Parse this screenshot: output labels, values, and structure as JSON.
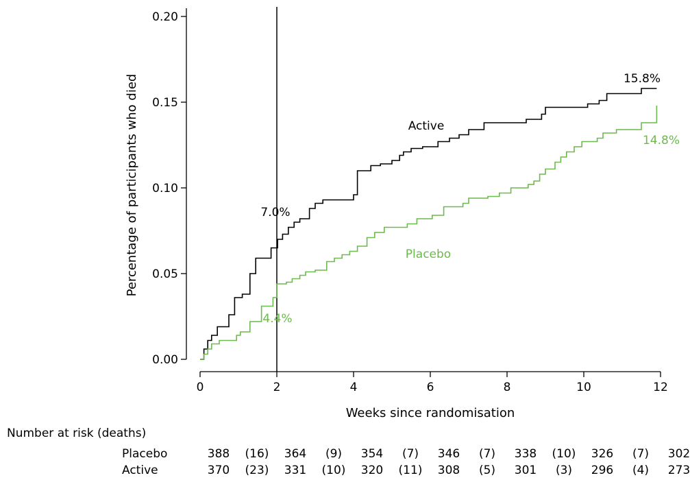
{
  "chart_data": {
    "type": "line",
    "subtype": "step",
    "xlabel": "Weeks since randomisation",
    "ylabel": "Percentage of participants who died",
    "xlim": [
      0,
      12
    ],
    "ylim": [
      0,
      0.2
    ],
    "xticks": [
      "0",
      "2",
      "4",
      "6",
      "8",
      "10",
      "12"
    ],
    "yticks": [
      "0.00",
      "0.05",
      "0.10",
      "0.15",
      "0.20"
    ],
    "grid": false,
    "legend": "inline labels",
    "reference_line_x": 2,
    "series": [
      {
        "name": "Active",
        "color": "#000000",
        "x": [
          0,
          0.1,
          0.2,
          0.3,
          0.45,
          0.75,
          0.9,
          1.1,
          1.3,
          1.45,
          1.85,
          2.02,
          2.15,
          2.3,
          2.45,
          2.6,
          2.85,
          3.0,
          3.2,
          3.5,
          4.0,
          4.1,
          4.45,
          4.7,
          5.0,
          5.2,
          5.3,
          5.5,
          5.8,
          6.2,
          6.5,
          6.75,
          7.0,
          7.4,
          8.5,
          8.9,
          9.0,
          10.1,
          10.4,
          10.6,
          11.5,
          11.9
        ],
        "y": [
          0,
          0.006,
          0.011,
          0.014,
          0.019,
          0.026,
          0.036,
          0.038,
          0.05,
          0.059,
          0.065,
          0.07,
          0.073,
          0.077,
          0.08,
          0.082,
          0.088,
          0.091,
          0.093,
          0.093,
          0.096,
          0.11,
          0.113,
          0.114,
          0.116,
          0.119,
          0.121,
          0.123,
          0.124,
          0.127,
          0.129,
          0.131,
          0.134,
          0.138,
          0.14,
          0.143,
          0.147,
          0.149,
          0.151,
          0.155,
          0.158,
          0.158
        ],
        "end_label": "15.8%",
        "point_label": "7.0%",
        "point_label_x": 2,
        "point_label_y": 0.07
      },
      {
        "name": "Placebo",
        "color": "#6cb94d",
        "x": [
          0,
          0.1,
          0.2,
          0.3,
          0.5,
          0.95,
          1.05,
          1.3,
          1.6,
          1.9,
          2.0,
          2.25,
          2.4,
          2.6,
          2.75,
          3.0,
          3.3,
          3.5,
          3.7,
          3.9,
          4.1,
          4.35,
          4.55,
          4.8,
          5.4,
          5.65,
          6.05,
          6.35,
          6.85,
          7.0,
          7.5,
          7.8,
          8.1,
          8.55,
          8.7,
          8.85,
          9.0,
          9.25,
          9.4,
          9.55,
          9.75,
          9.95,
          10.35,
          10.5,
          10.85,
          11.5,
          11.9
        ],
        "y": [
          0,
          0.003,
          0.006,
          0.009,
          0.011,
          0.014,
          0.016,
          0.022,
          0.031,
          0.036,
          0.044,
          0.045,
          0.047,
          0.049,
          0.051,
          0.052,
          0.057,
          0.059,
          0.061,
          0.063,
          0.066,
          0.071,
          0.074,
          0.077,
          0.079,
          0.082,
          0.084,
          0.089,
          0.091,
          0.094,
          0.095,
          0.097,
          0.1,
          0.102,
          0.104,
          0.108,
          0.111,
          0.115,
          0.118,
          0.121,
          0.124,
          0.127,
          0.129,
          0.132,
          0.134,
          0.138,
          0.148
        ],
        "end_label": "14.8%",
        "point_label": "4.4%",
        "point_label_x": 2,
        "point_label_y": 0.044
      }
    ],
    "risk_table": {
      "title": "Number at risk (deaths)",
      "rows": [
        {
          "name": "Placebo",
          "values": [
            "388",
            "(16)",
            "364",
            "(9)",
            "354",
            "(7)",
            "346",
            "(7)",
            "338",
            "(10)",
            "326",
            "(7)",
            "302"
          ]
        },
        {
          "name": "Active",
          "values": [
            "370",
            "(23)",
            "331",
            "(10)",
            "320",
            "(11)",
            "308",
            "(5)",
            "301",
            "(3)",
            "296",
            "(4)",
            "273"
          ]
        }
      ]
    }
  }
}
